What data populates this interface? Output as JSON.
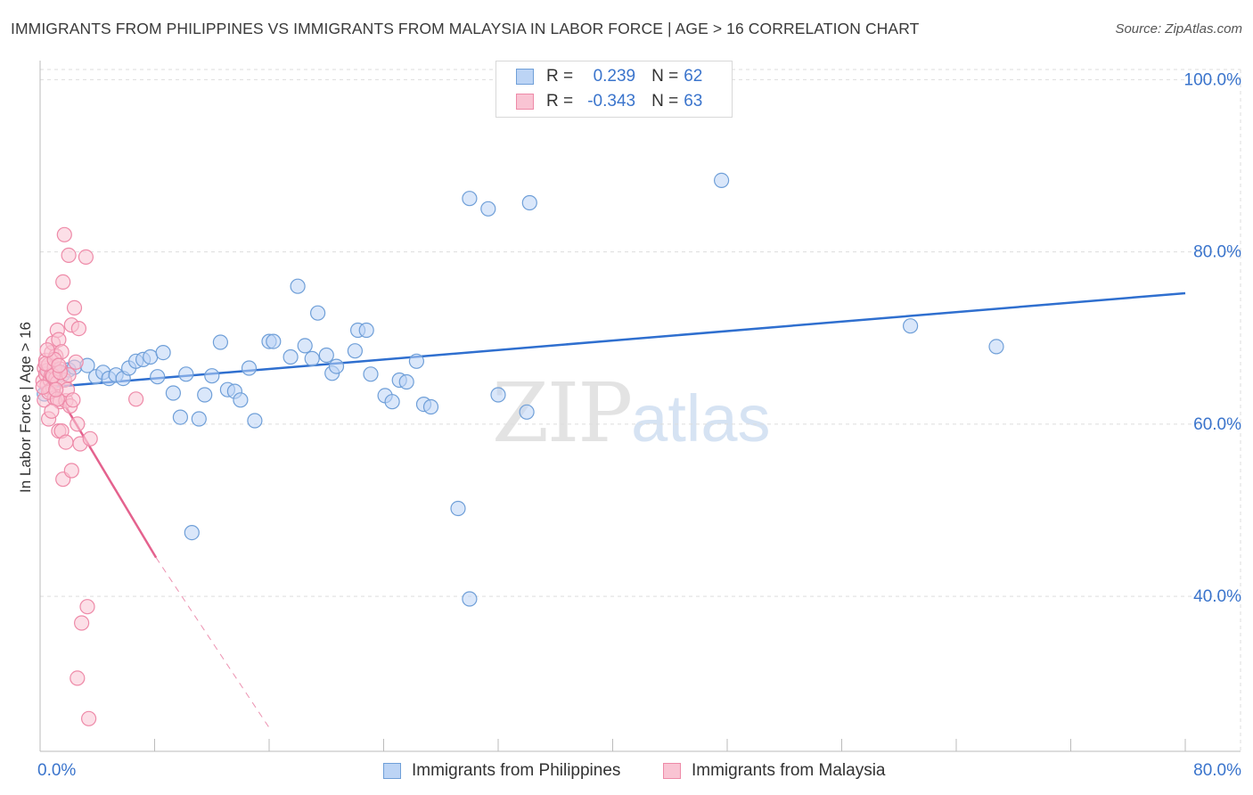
{
  "title": "IMMIGRANTS FROM PHILIPPINES VS IMMIGRANTS FROM MALAYSIA IN LABOR FORCE | AGE > 16 CORRELATION CHART",
  "source": "Source: ZipAtlas.com",
  "watermark": {
    "zip": "ZIP",
    "atlas": "atlas"
  },
  "legend": {
    "r_label": "R =",
    "n_label": "N =",
    "series": [
      {
        "name": "Immigrants from Philippines",
        "r": "0.239",
        "n": "62"
      },
      {
        "name": "Immigrants from Malaysia",
        "r": "-0.343",
        "n": "63"
      }
    ]
  },
  "colors": {
    "philippines_fill": "#bcd4f5",
    "philippines_stroke": "#6f9fd8",
    "philippines_line": "#2f6fcf",
    "malaysia_fill": "#f9c4d3",
    "malaysia_stroke": "#ee8aa8",
    "malaysia_line": "#e4628e",
    "value_text": "#3a74cc",
    "grid": "#dddddd"
  },
  "chart_data": {
    "type": "scatter",
    "title": "IMMIGRANTS FROM PHILIPPINES VS IMMIGRANTS FROM MALAYSIA IN LABOR FORCE | AGE > 16 CORRELATION CHART",
    "xlabel": "",
    "ylabel": "In Labor Force | Age > 16",
    "xlim": [
      0,
      80
    ],
    "ylim": [
      22,
      102
    ],
    "x_tick_labels": [
      "0.0%",
      "80.0%"
    ],
    "y_ticks": [
      40,
      60,
      80,
      100
    ],
    "y_tick_labels": [
      "40.0%",
      "60.0%",
      "80.0%",
      "100.0%"
    ],
    "grid": true,
    "series": [
      {
        "name": "Immigrants from Philippines",
        "points": [
          [
            0.3,
            63.5
          ],
          [
            0.6,
            66.0
          ],
          [
            0.9,
            65.2
          ],
          [
            1.2,
            66.1
          ],
          [
            1.6,
            65.8
          ],
          [
            2.0,
            66.3
          ],
          [
            2.4,
            66.6
          ],
          [
            3.3,
            66.8
          ],
          [
            3.9,
            65.5
          ],
          [
            4.4,
            66.0
          ],
          [
            4.8,
            65.3
          ],
          [
            5.3,
            65.7
          ],
          [
            5.8,
            65.3
          ],
          [
            6.2,
            66.5
          ],
          [
            6.7,
            67.3
          ],
          [
            7.2,
            67.5
          ],
          [
            7.7,
            67.8
          ],
          [
            8.2,
            65.5
          ],
          [
            8.6,
            68.3
          ],
          [
            9.3,
            63.6
          ],
          [
            9.8,
            60.8
          ],
          [
            10.2,
            65.8
          ],
          [
            11.1,
            60.6
          ],
          [
            11.5,
            63.4
          ],
          [
            12.0,
            65.6
          ],
          [
            12.6,
            69.5
          ],
          [
            13.1,
            64.0
          ],
          [
            13.6,
            63.8
          ],
          [
            14.0,
            62.8
          ],
          [
            14.6,
            66.5
          ],
          [
            15.0,
            60.4
          ],
          [
            16.0,
            69.6
          ],
          [
            16.3,
            69.6
          ],
          [
            17.5,
            67.8
          ],
          [
            18.0,
            76.0
          ],
          [
            18.5,
            69.1
          ],
          [
            19.0,
            67.6
          ],
          [
            19.4,
            72.9
          ],
          [
            20.0,
            68.0
          ],
          [
            20.4,
            65.9
          ],
          [
            20.7,
            66.7
          ],
          [
            22.0,
            68.5
          ],
          [
            22.2,
            70.9
          ],
          [
            22.8,
            70.9
          ],
          [
            23.1,
            65.8
          ],
          [
            24.1,
            63.3
          ],
          [
            24.6,
            62.6
          ],
          [
            25.1,
            65.1
          ],
          [
            25.6,
            64.9
          ],
          [
            26.3,
            67.3
          ],
          [
            26.8,
            62.3
          ],
          [
            27.3,
            62.0
          ],
          [
            29.2,
            50.2
          ],
          [
            30.0,
            86.2
          ],
          [
            30.0,
            39.7
          ],
          [
            31.3,
            85.0
          ],
          [
            32.0,
            63.4
          ],
          [
            34.0,
            61.4
          ],
          [
            34.2,
            85.7
          ],
          [
            47.6,
            88.3
          ],
          [
            60.8,
            71.4
          ],
          [
            66.8,
            69.0
          ],
          [
            10.6,
            47.4
          ]
        ],
        "trend": {
          "x0": 0,
          "y0": 64.2,
          "x1": 80,
          "y1": 75.2
        }
      },
      {
        "name": "Immigrants from Malaysia",
        "points": [
          [
            0.2,
            65.0
          ],
          [
            0.3,
            66.5
          ],
          [
            0.3,
            62.8
          ],
          [
            0.4,
            65.8
          ],
          [
            0.4,
            67.4
          ],
          [
            0.5,
            64.5
          ],
          [
            0.5,
            66.2
          ],
          [
            0.6,
            60.6
          ],
          [
            0.6,
            66.9
          ],
          [
            0.7,
            65.1
          ],
          [
            0.7,
            63.9
          ],
          [
            0.8,
            68.3
          ],
          [
            0.8,
            65.7
          ],
          [
            0.9,
            69.4
          ],
          [
            0.9,
            64.2
          ],
          [
            1.0,
            66.6
          ],
          [
            1.0,
            63.0
          ],
          [
            1.1,
            67.9
          ],
          [
            1.1,
            65.3
          ],
          [
            1.2,
            70.9
          ],
          [
            1.2,
            64.8
          ],
          [
            1.3,
            69.8
          ],
          [
            1.3,
            59.2
          ],
          [
            1.4,
            66.4
          ],
          [
            1.4,
            62.6
          ],
          [
            1.5,
            68.4
          ],
          [
            1.5,
            59.2
          ],
          [
            1.6,
            53.6
          ],
          [
            1.6,
            76.5
          ],
          [
            1.7,
            82.0
          ],
          [
            1.7,
            65.1
          ],
          [
            1.8,
            62.7
          ],
          [
            1.8,
            57.9
          ],
          [
            1.9,
            64.0
          ],
          [
            2.0,
            79.6
          ],
          [
            2.0,
            65.7
          ],
          [
            2.1,
            62.1
          ],
          [
            2.2,
            71.5
          ],
          [
            2.2,
            54.6
          ],
          [
            2.3,
            62.8
          ],
          [
            2.4,
            73.5
          ],
          [
            2.5,
            67.2
          ],
          [
            2.6,
            60.0
          ],
          [
            2.7,
            71.1
          ],
          [
            2.8,
            57.7
          ],
          [
            2.9,
            36.9
          ],
          [
            3.2,
            79.4
          ],
          [
            3.3,
            38.8
          ],
          [
            3.4,
            25.8
          ],
          [
            3.5,
            58.3
          ],
          [
            2.6,
            30.5
          ],
          [
            6.7,
            62.9
          ],
          [
            0.4,
            67.0
          ],
          [
            0.6,
            63.7
          ],
          [
            0.9,
            65.6
          ],
          [
            1.0,
            67.5
          ],
          [
            1.2,
            62.9
          ],
          [
            1.4,
            66.0
          ],
          [
            0.2,
            64.3
          ],
          [
            0.5,
            68.6
          ],
          [
            0.8,
            61.5
          ],
          [
            1.1,
            64.0
          ],
          [
            1.3,
            66.8
          ]
        ],
        "trend": {
          "x0": 0,
          "y0": 67.0,
          "x1": 8.1,
          "y1": 44.5
        },
        "trend_extension": {
          "x0": 8.1,
          "y0": 44.5,
          "x1": 16.1,
          "y1": 24.5
        }
      }
    ]
  }
}
